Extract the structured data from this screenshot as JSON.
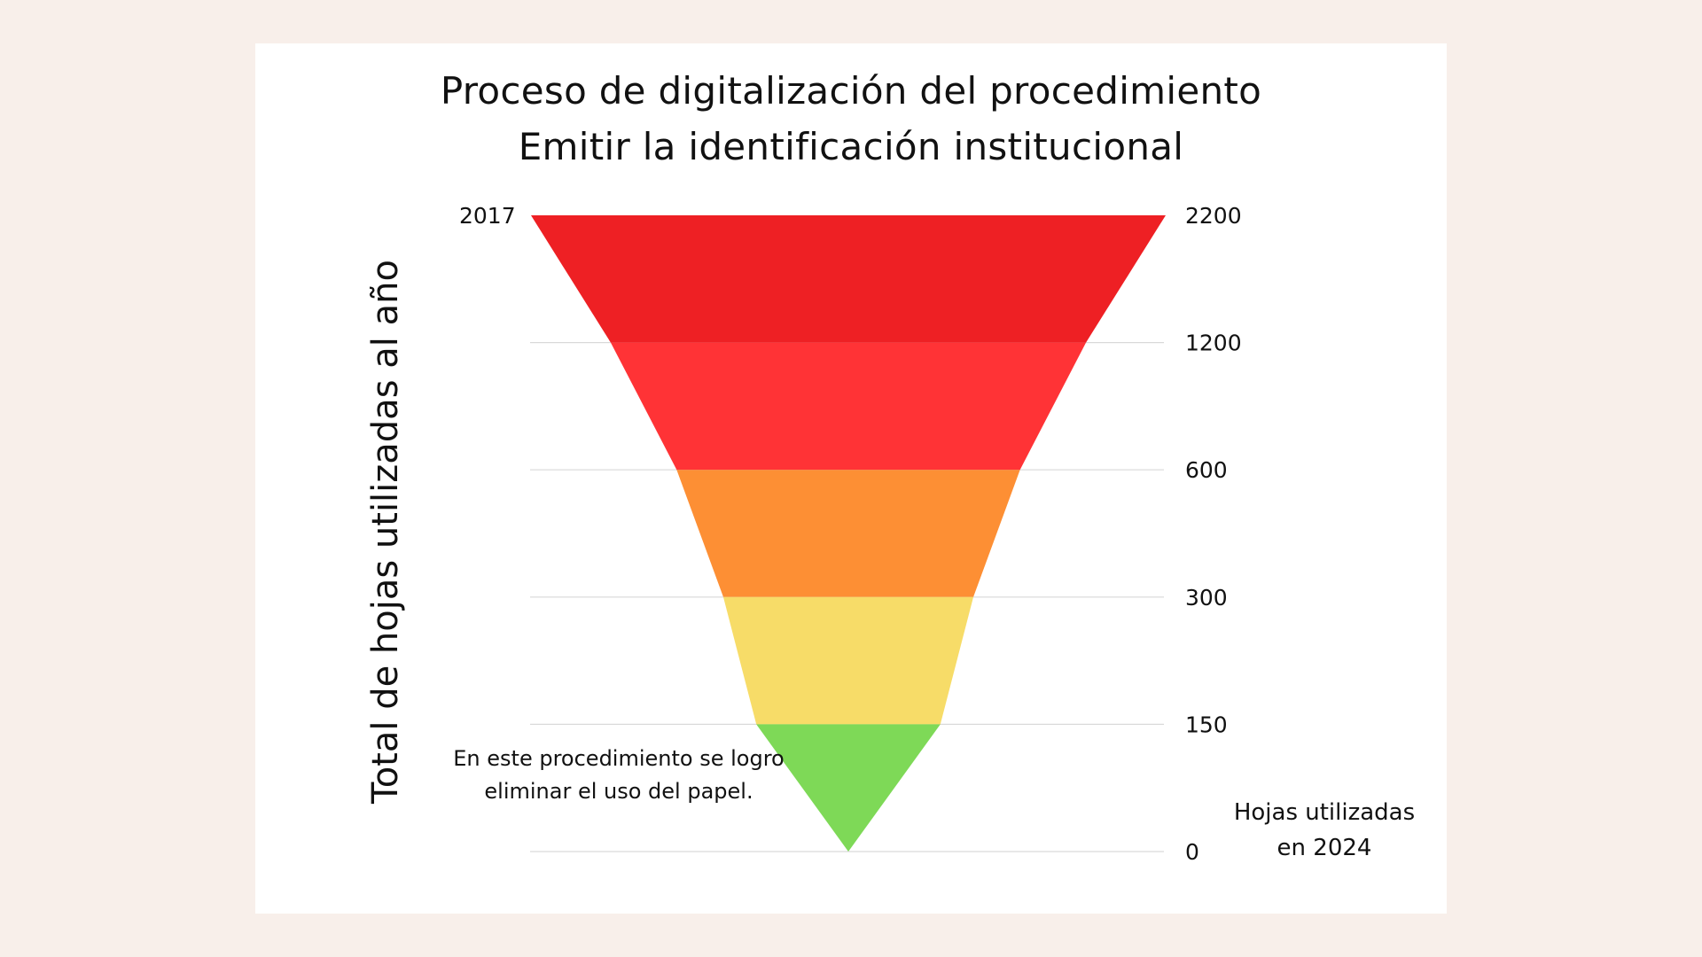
{
  "chart_data": {
    "type": "funnel",
    "title": "Proceso de digitalización del procedimiento",
    "subtitle": "Emitir la identificación institucional",
    "ylabel": "Total de hojas utilizadas al año",
    "top_year_label": "2017",
    "levels": [
      2200,
      1200,
      600,
      300,
      150,
      0
    ],
    "tick_labels": [
      "2200",
      "1200",
      "600",
      "300",
      "150",
      "0"
    ],
    "segments": [
      {
        "from": 2200,
        "to": 1200,
        "color": "#ee2024"
      },
      {
        "from": 1200,
        "to": 600,
        "color": "#ff3336"
      },
      {
        "from": 600,
        "to": 300,
        "color": "#fd8f34"
      },
      {
        "from": 300,
        "to": 150,
        "color": "#f7dc68"
      },
      {
        "from": 150,
        "to": 0,
        "color": "#7ed957"
      }
    ],
    "gridlines": true,
    "annotation": [
      "En este procedimiento se logro",
      "eliminar el uso del papel."
    ],
    "note": [
      "Hojas utilizadas",
      "en 2024"
    ]
  },
  "colors": {
    "page_background": "#f8efea",
    "card_background": "#ffffff",
    "gridline": "#d9d9d9"
  }
}
